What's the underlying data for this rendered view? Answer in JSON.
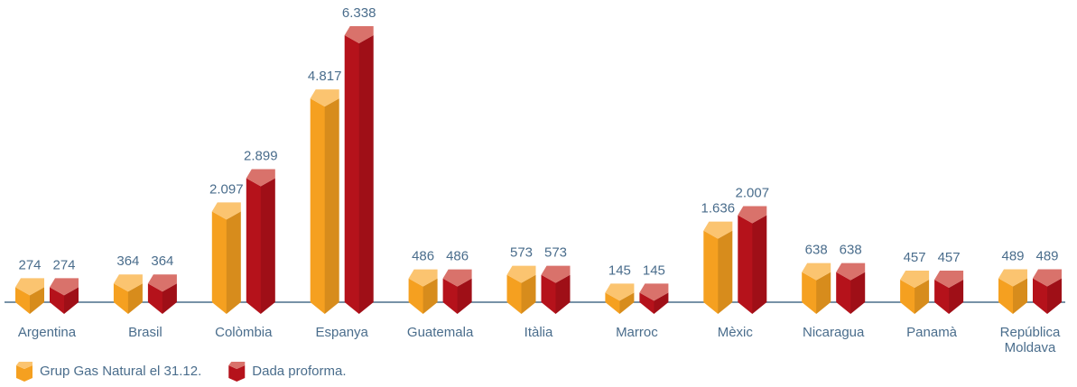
{
  "chart_data": {
    "type": "bar",
    "categories": [
      "Argentina",
      "Brasil",
      "Colòmbia",
      "Espanya",
      "Guatemala",
      "Itàlia",
      "Marroc",
      "Mèxic",
      "Nicaragua",
      "Panamà",
      "República Moldava"
    ],
    "series": [
      {
        "name": "Grup Gas Natural el 31.12.",
        "color": "#f5a020",
        "top_color": "#fbc470",
        "values": [
          274,
          364,
          2097,
          4817,
          486,
          573,
          145,
          1636,
          638,
          457,
          489
        ],
        "value_labels": [
          "274",
          "364",
          "2.097",
          "4.817",
          "486",
          "573",
          "145",
          "1.636",
          "638",
          "457",
          "489"
        ]
      },
      {
        "name": "Dada proforma.",
        "color": "#b5121b",
        "top_color": "#d9726b",
        "values": [
          274,
          364,
          2899,
          6338,
          486,
          573,
          145,
          2007,
          638,
          457,
          489
        ],
        "value_labels": [
          "274",
          "364",
          "2.899",
          "6.338",
          "486",
          "573",
          "145",
          "2.007",
          "638",
          "457",
          "489"
        ]
      }
    ],
    "legend": "bottom-left"
  }
}
